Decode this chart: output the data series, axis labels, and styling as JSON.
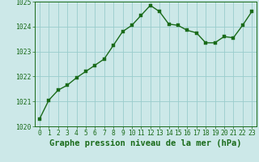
{
  "x": [
    0,
    1,
    2,
    3,
    4,
    5,
    6,
    7,
    8,
    9,
    10,
    11,
    12,
    13,
    14,
    15,
    16,
    17,
    18,
    19,
    20,
    21,
    22,
    23
  ],
  "y": [
    1020.3,
    1021.05,
    1021.45,
    1021.65,
    1021.95,
    1022.2,
    1022.45,
    1022.7,
    1023.25,
    1023.8,
    1024.05,
    1024.45,
    1024.85,
    1024.6,
    1024.1,
    1024.05,
    1023.85,
    1023.75,
    1023.35,
    1023.35,
    1023.6,
    1023.55,
    1024.05,
    1024.6
  ],
  "line_color": "#1a6b1a",
  "marker_color": "#1a6b1a",
  "bg_color": "#cce8e8",
  "grid_color": "#99cccc",
  "xlabel": "Graphe pression niveau de la mer (hPa)",
  "ylim": [
    1020,
    1025
  ],
  "xlim": [
    -0.5,
    23.5
  ],
  "yticks": [
    1020,
    1021,
    1022,
    1023,
    1024,
    1025
  ],
  "xticks": [
    0,
    1,
    2,
    3,
    4,
    5,
    6,
    7,
    8,
    9,
    10,
    11,
    12,
    13,
    14,
    15,
    16,
    17,
    18,
    19,
    20,
    21,
    22,
    23
  ],
  "tick_label_color": "#1a6b1a",
  "xlabel_color": "#1a6b1a",
  "xlabel_fontsize": 7.5,
  "tick_fontsize": 5.8,
  "marker_size": 2.5,
  "line_width": 1.0
}
